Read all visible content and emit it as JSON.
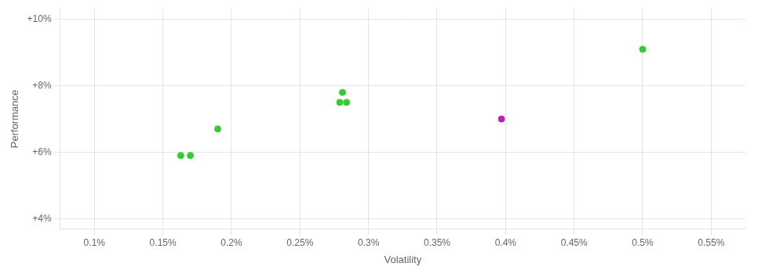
{
  "chart_data": {
    "type": "scatter",
    "xlabel": "Volatility",
    "ylabel": "Performance",
    "xlim": [
      0.075,
      0.575
    ],
    "ylim": [
      0.037,
      0.103
    ],
    "xticks": [
      {
        "value": 0.1,
        "label": "0.1%"
      },
      {
        "value": 0.15,
        "label": "0.15%"
      },
      {
        "value": 0.2,
        "label": "0.2%"
      },
      {
        "value": 0.25,
        "label": "0.25%"
      },
      {
        "value": 0.3,
        "label": "0.3%"
      },
      {
        "value": 0.35,
        "label": "0.35%"
      },
      {
        "value": 0.4,
        "label": "0.4%"
      },
      {
        "value": 0.45,
        "label": "0.45%"
      },
      {
        "value": 0.5,
        "label": "0.5%"
      },
      {
        "value": 0.55,
        "label": "0.55%"
      }
    ],
    "yticks": [
      {
        "value": 0.04,
        "label": "+4%"
      },
      {
        "value": 0.06,
        "label": "+6%"
      },
      {
        "value": 0.08,
        "label": "+8%"
      },
      {
        "value": 0.1,
        "label": "+10%"
      }
    ],
    "grid": true,
    "series": [
      {
        "color": "#33cc33",
        "values": [
          [
            0.281,
            0.078
          ],
          [
            0.279,
            0.075
          ],
          [
            0.284,
            0.075
          ],
          [
            0.19,
            0.067
          ],
          [
            0.163,
            0.059
          ],
          [
            0.17,
            0.059
          ],
          [
            0.5,
            0.091
          ]
        ]
      },
      {
        "color": "#bb22bb",
        "values": [
          [
            0.397,
            0.07
          ]
        ]
      }
    ]
  }
}
